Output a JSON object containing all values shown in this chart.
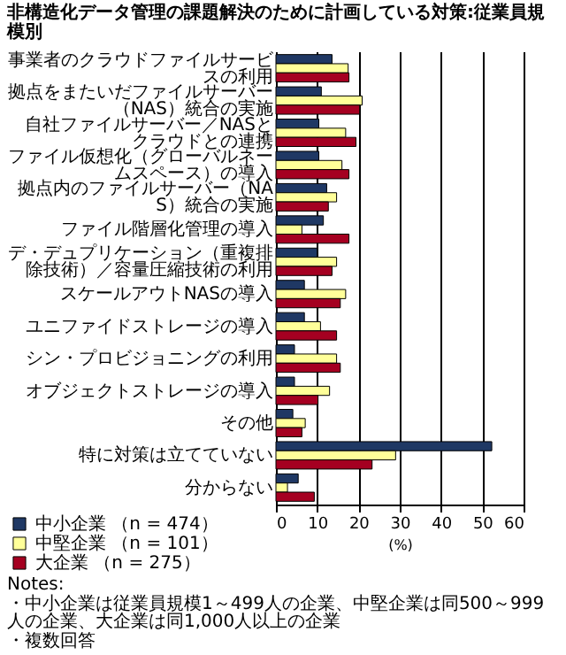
{
  "chart_data": {
    "type": "bar",
    "orientation": "horizontal",
    "title": "非構造化データ管理の課題解決のために計画している対策:従業員規模別",
    "xlabel": "(%)",
    "categories": [
      "事業者のクラウドファイルサービスの利用",
      "拠点をまたいだファイルサーバー（NAS）統合の実施",
      "自社ファイルサーバー／NASとクラウドとの連携",
      "ファイル仮想化（グローバルネームスペース）の導入",
      "拠点内のファイルサーバー（NAS）統合の実施",
      "ファイル階層化管理の導入",
      "デ・デュプリケーション（重複排除技術）／容量圧縮技術の利用",
      "スケールアウトNASの導入",
      "ユニファイドストレージの導入",
      "シン・プロビジョニングの利用",
      "オブジェクトストレージの導入",
      "その他",
      "特に対策は立てていない",
      "分からない"
    ],
    "series": [
      {
        "name": "中小企業 （n = 474）",
        "color": "#1f3864",
        "values": [
          13.6,
          11,
          10.4,
          10.4,
          12.3,
          11.5,
          10,
          6.9,
          6.9,
          4.5,
          4.5,
          4.1,
          52.3,
          5.4
        ]
      },
      {
        "name": "中堅企業 （n = 101）",
        "color": "#ffff99",
        "values": [
          17.5,
          20.9,
          16.9,
          16,
          14.7,
          6.3,
          14.7,
          16.9,
          10.8,
          14.7,
          13,
          7.1,
          29,
          2.8
        ]
      },
      {
        "name": "大企業 （n = 275）",
        "color": "#a50021",
        "values": [
          17.7,
          20.3,
          19.4,
          17.7,
          12.7,
          17.7,
          13.6,
          15.6,
          14.7,
          15.6,
          10.2,
          6.3,
          23.3,
          9.3
        ]
      }
    ],
    "xlim": [
      0,
      60
    ],
    "xticks": [
      0,
      10,
      20,
      30,
      40,
      50,
      60
    ],
    "grid": "x",
    "legend": "bottom",
    "annotations": [
      "Notes:",
      "・中小企業は従業員規模1～499人の企業、中堅企業は同500～999人の企業、大企業は同1,000人以上の企業",
      "・複数回答"
    ]
  }
}
